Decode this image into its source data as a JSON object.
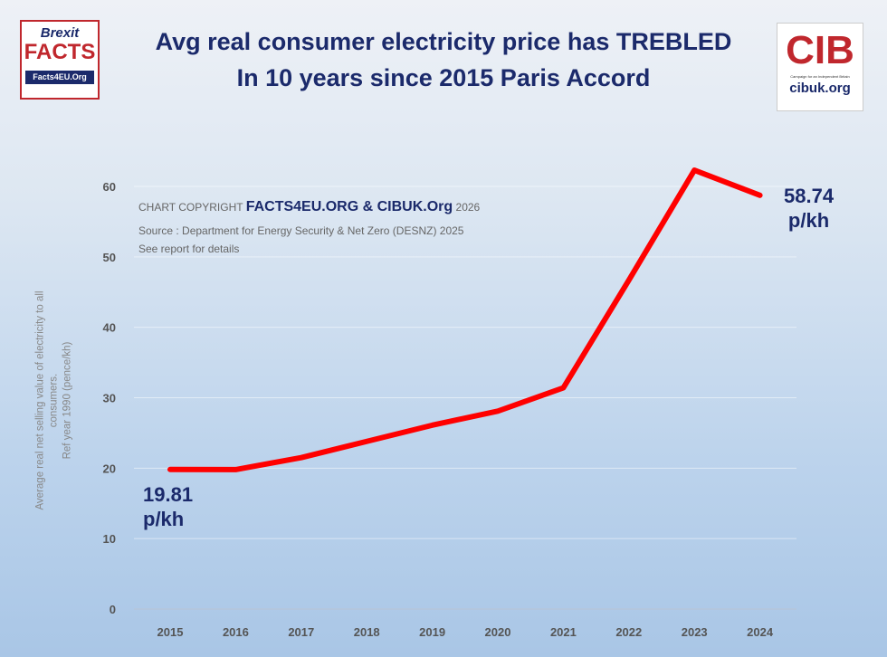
{
  "title_line1": "Avg real consumer electricity price has TREBLED",
  "title_line2": "In 10 years since 2015 Paris Accord",
  "logo_left": {
    "top": "Brexit",
    "main": "FACTS",
    "url": "Facts4EU.Org"
  },
  "logo_right": {
    "main": "CIB",
    "subtitle": "Campaign for an Independent Britain",
    "url": "cibuk.org"
  },
  "notes": {
    "copyright_prefix": "CHART COPYRIGHT",
    "copyright_main": "FACTS4EU.ORG & CIBUK.Org",
    "copyright_year": "2026",
    "source": "Source : Department for Energy Security & Net Zero (DESNZ) 2025",
    "details": "See report for details"
  },
  "colors": {
    "line": "#ff0000",
    "title": "#1b2a6b"
  },
  "chart_data": {
    "type": "line",
    "title": "Avg real consumer electricity price has TREBLED In 10 years since 2015 Paris Accord",
    "xlabel": "",
    "ylabel_line1": "Average real net selling value of electricity to all consumers.",
    "ylabel_line2": "Ref year 1990 (pence/kh)",
    "categories": [
      "2015",
      "2016",
      "2017",
      "2018",
      "2019",
      "2020",
      "2021",
      "2022",
      "2023",
      "2024"
    ],
    "values": [
      19.81,
      19.8,
      21.5,
      23.8,
      26.1,
      28.1,
      31.4,
      46.7,
      62.3,
      58.74
    ],
    "ylim": [
      0,
      60
    ],
    "yticks": [
      0,
      10,
      20,
      30,
      40,
      50,
      60
    ],
    "grid": true,
    "annotations": [
      {
        "value": "19.81",
        "unit": "p/kh",
        "year": "2015"
      },
      {
        "value": "58.74",
        "unit": "p/kh",
        "year": "2024"
      }
    ]
  }
}
